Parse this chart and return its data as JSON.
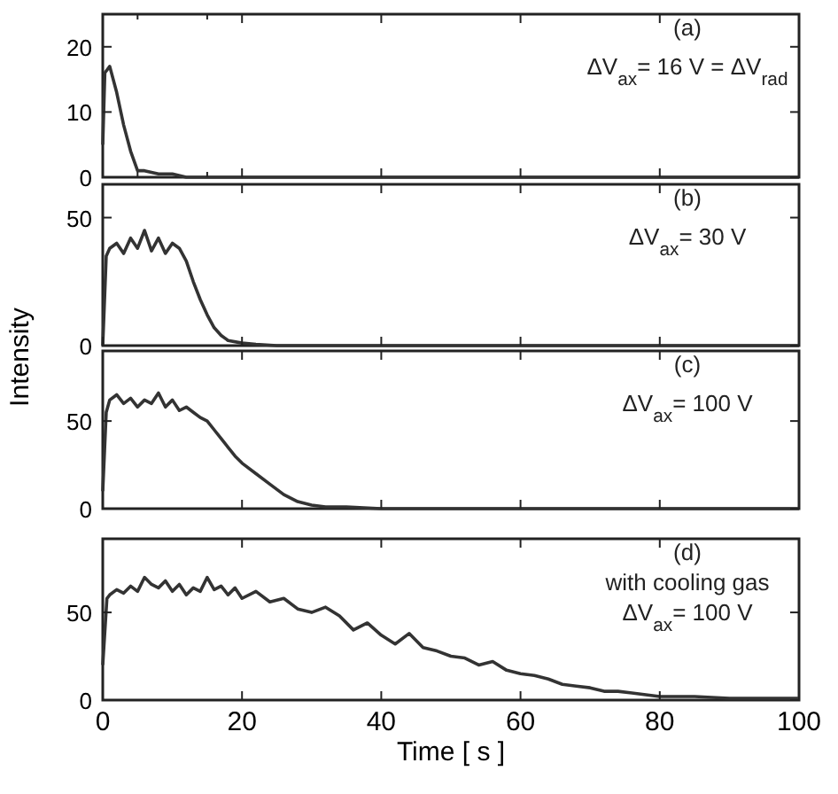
{
  "chart_data": [
    {
      "type": "line",
      "annotations": [
        "(a)",
        "ΔV$_{ax}$= 16 V = ΔV$_{rad}$"
      ],
      "x": [
        0,
        0.3,
        1,
        2,
        3,
        4,
        5,
        6,
        8,
        10,
        12,
        100
      ],
      "series": [
        {
          "color": "#333333",
          "values": [
            5,
            16,
            17,
            13,
            8,
            4,
            1,
            1,
            0.5,
            0.5,
            0,
            0
          ]
        }
      ],
      "xlim": [
        0,
        100
      ],
      "ylim": [
        0,
        25
      ],
      "yticks": [
        0,
        10,
        20
      ],
      "xticks": [
        0,
        {
          "value": 5,
          "label": null
        },
        20,
        {
          "value": 15,
          "label": null
        },
        40,
        60,
        80,
        100
      ],
      "tick_labels": "y"
    },
    {
      "type": "line",
      "ylabel": "Intensity",
      "annotations": [
        "(b)",
        "ΔV$_{ax}$= 30 V"
      ],
      "x": [
        0,
        0.5,
        1,
        2,
        3,
        4,
        5,
        6,
        7,
        8,
        9,
        10,
        11,
        12,
        13,
        14,
        15,
        16,
        17,
        18,
        20,
        22,
        25,
        100
      ],
      "series": [
        {
          "color": "#333333",
          "values": [
            0,
            35,
            38,
            40,
            36,
            42,
            38,
            45,
            37,
            42,
            36,
            40,
            38,
            33,
            25,
            18,
            12,
            7,
            4,
            2,
            1,
            0.5,
            0,
            0
          ]
        }
      ],
      "xlim": [
        0,
        100
      ],
      "ylim": [
        0,
        63
      ],
      "yticks": [
        0,
        50
      ],
      "xticks": [
        0,
        20,
        40,
        60,
        80,
        100
      ],
      "tick_labels": "y"
    },
    {
      "type": "line",
      "annotations": [
        "(c)",
        "ΔV$_{ax}$= 100 V"
      ],
      "x": [
        0,
        0.5,
        1,
        2,
        3,
        4,
        5,
        6,
        7,
        8,
        9,
        10,
        11,
        12,
        13,
        14,
        15,
        16,
        17,
        18,
        19,
        20,
        22,
        24,
        26,
        28,
        30,
        32,
        35,
        40,
        100
      ],
      "series": [
        {
          "color": "#333333",
          "values": [
            10,
            55,
            62,
            65,
            60,
            63,
            58,
            62,
            60,
            66,
            58,
            62,
            56,
            58,
            55,
            52,
            50,
            45,
            40,
            35,
            30,
            26,
            20,
            14,
            8,
            4,
            2,
            1,
            1,
            0,
            0
          ]
        }
      ],
      "xlim": [
        0,
        100
      ],
      "ylim": [
        0,
        90
      ],
      "yticks": [
        0,
        50
      ],
      "xticks": [
        0,
        20,
        40,
        60,
        80,
        100
      ],
      "tick_labels": "y"
    },
    {
      "type": "line",
      "xlabel": "Time [ s ]",
      "annotations": [
        "(d)",
        "with cooling gas",
        "ΔV$_{ax}$= 100 V"
      ],
      "x": [
        0,
        0.6,
        1,
        2,
        3,
        4,
        5,
        6,
        7,
        8,
        9,
        10,
        11,
        12,
        13,
        14,
        15,
        16,
        17,
        18,
        19,
        20,
        22,
        24,
        26,
        28,
        30,
        32,
        34,
        36,
        38,
        40,
        42,
        44,
        46,
        48,
        50,
        52,
        54,
        56,
        58,
        60,
        62,
        64,
        66,
        68,
        70,
        72,
        74,
        76,
        78,
        80,
        85,
        90,
        95,
        100
      ],
      "series": [
        {
          "color": "#333333",
          "values": [
            20,
            58,
            60,
            63,
            61,
            65,
            62,
            70,
            66,
            64,
            68,
            62,
            66,
            60,
            64,
            62,
            70,
            63,
            65,
            60,
            64,
            58,
            62,
            56,
            58,
            52,
            50,
            53,
            48,
            40,
            44,
            37,
            32,
            38,
            30,
            28,
            25,
            24,
            20,
            22,
            17,
            15,
            14,
            12,
            9,
            8,
            7,
            5,
            5,
            4,
            3,
            2,
            2,
            1,
            1,
            1
          ]
        }
      ],
      "xlim": [
        0,
        100
      ],
      "ylim": [
        0,
        92
      ],
      "yticks": [
        0,
        50
      ],
      "xticks": [
        0,
        20,
        40,
        60,
        80,
        100
      ]
    }
  ]
}
